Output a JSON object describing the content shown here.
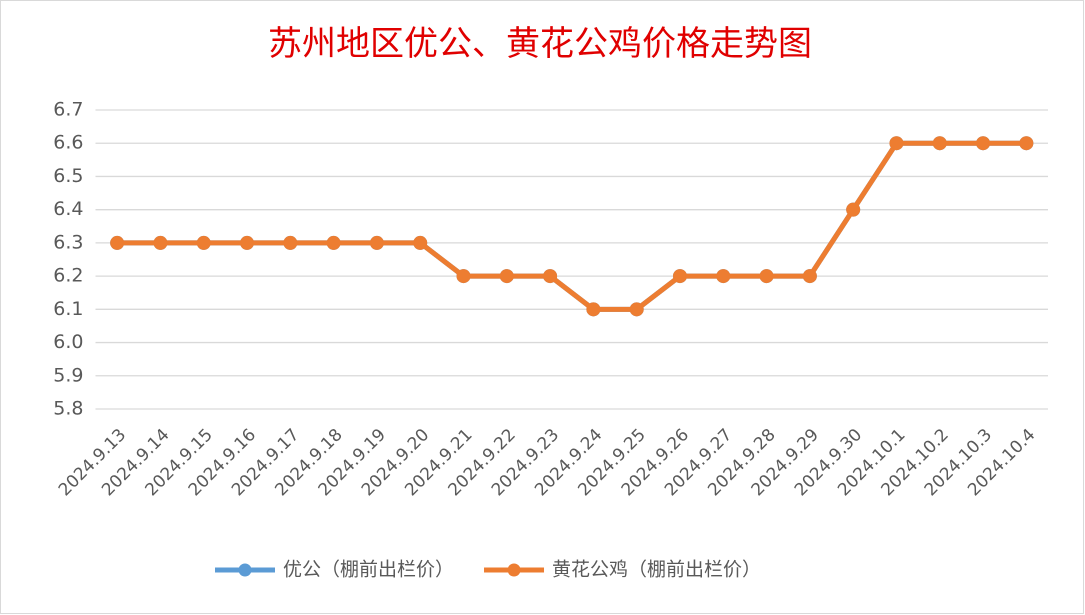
{
  "chart_data": {
    "type": "line",
    "title": "苏州地区优公、黄花公鸡价格走势图",
    "categories": [
      "2024.9.13",
      "2024.9.14",
      "2024.9.15",
      "2024.9.16",
      "2024.9.17",
      "2024.9.18",
      "2024.9.19",
      "2024.9.20",
      "2024.9.21",
      "2024.9.22",
      "2024.9.23",
      "2024.9.24",
      "2024.9.25",
      "2024.9.26",
      "2024.9.27",
      "2024.9.28",
      "2024.9.29",
      "2024.9.30",
      "2024.10.1",
      "2024.10.2",
      "2024.10.3",
      "2024.10.4"
    ],
    "series": [
      {
        "name": "优公（棚前出栏价）",
        "color": "#5b9bd5",
        "values": [
          6.3,
          6.3,
          6.3,
          6.3,
          6.3,
          6.3,
          6.3,
          6.3,
          6.2,
          6.2,
          6.2,
          6.1,
          6.1,
          6.2,
          6.2,
          6.2,
          6.2,
          6.4,
          6.6,
          6.6,
          6.6,
          6.6
        ]
      },
      {
        "name": "黄花公鸡（棚前出栏价）",
        "color": "#ed7d31",
        "values": [
          6.3,
          6.3,
          6.3,
          6.3,
          6.3,
          6.3,
          6.3,
          6.3,
          6.2,
          6.2,
          6.2,
          6.1,
          6.1,
          6.2,
          6.2,
          6.2,
          6.2,
          6.4,
          6.6,
          6.6,
          6.6,
          6.6
        ]
      }
    ],
    "ylim": [
      5.8,
      6.7
    ],
    "yticks": [
      5.8,
      5.9,
      {
        "value": 6,
        "label": "6.0"
      },
      6.1,
      6.2,
      6.3,
      6.4,
      6.5,
      6.6,
      6.7
    ],
    "grid": true,
    "legend": "bottom"
  }
}
